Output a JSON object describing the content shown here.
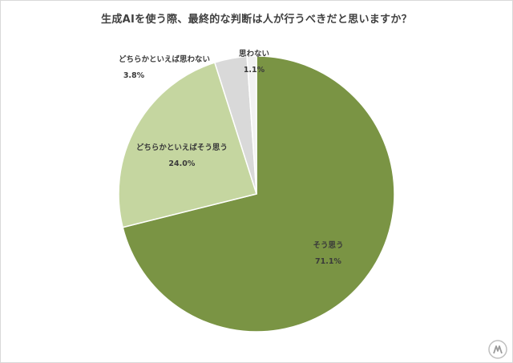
{
  "chart_data": {
    "type": "pie",
    "title": "生成AIを使う際、最終的な判断は人が行うべきだと思いますか？",
    "slices": [
      {
        "label": "そう思う",
        "value": 71.1,
        "value_label": "71.1%",
        "color": "#7a9444"
      },
      {
        "label": "どちらかといえばそう思う",
        "value": 24.0,
        "value_label": "24.0%",
        "color": "#c5d6a0"
      },
      {
        "label": "どちらかといえば思わない",
        "value": 3.8,
        "value_label": "3.8%",
        "color": "#d9d9d9"
      },
      {
        "label": "思わない",
        "value": 1.1,
        "value_label": "1.1%",
        "color": "#f2f2f2"
      }
    ],
    "start_angle": "12 o'clock",
    "direction": "clockwise",
    "legend": "none",
    "labels": "inside slices"
  },
  "watermark_icon": "mi-logo-icon"
}
